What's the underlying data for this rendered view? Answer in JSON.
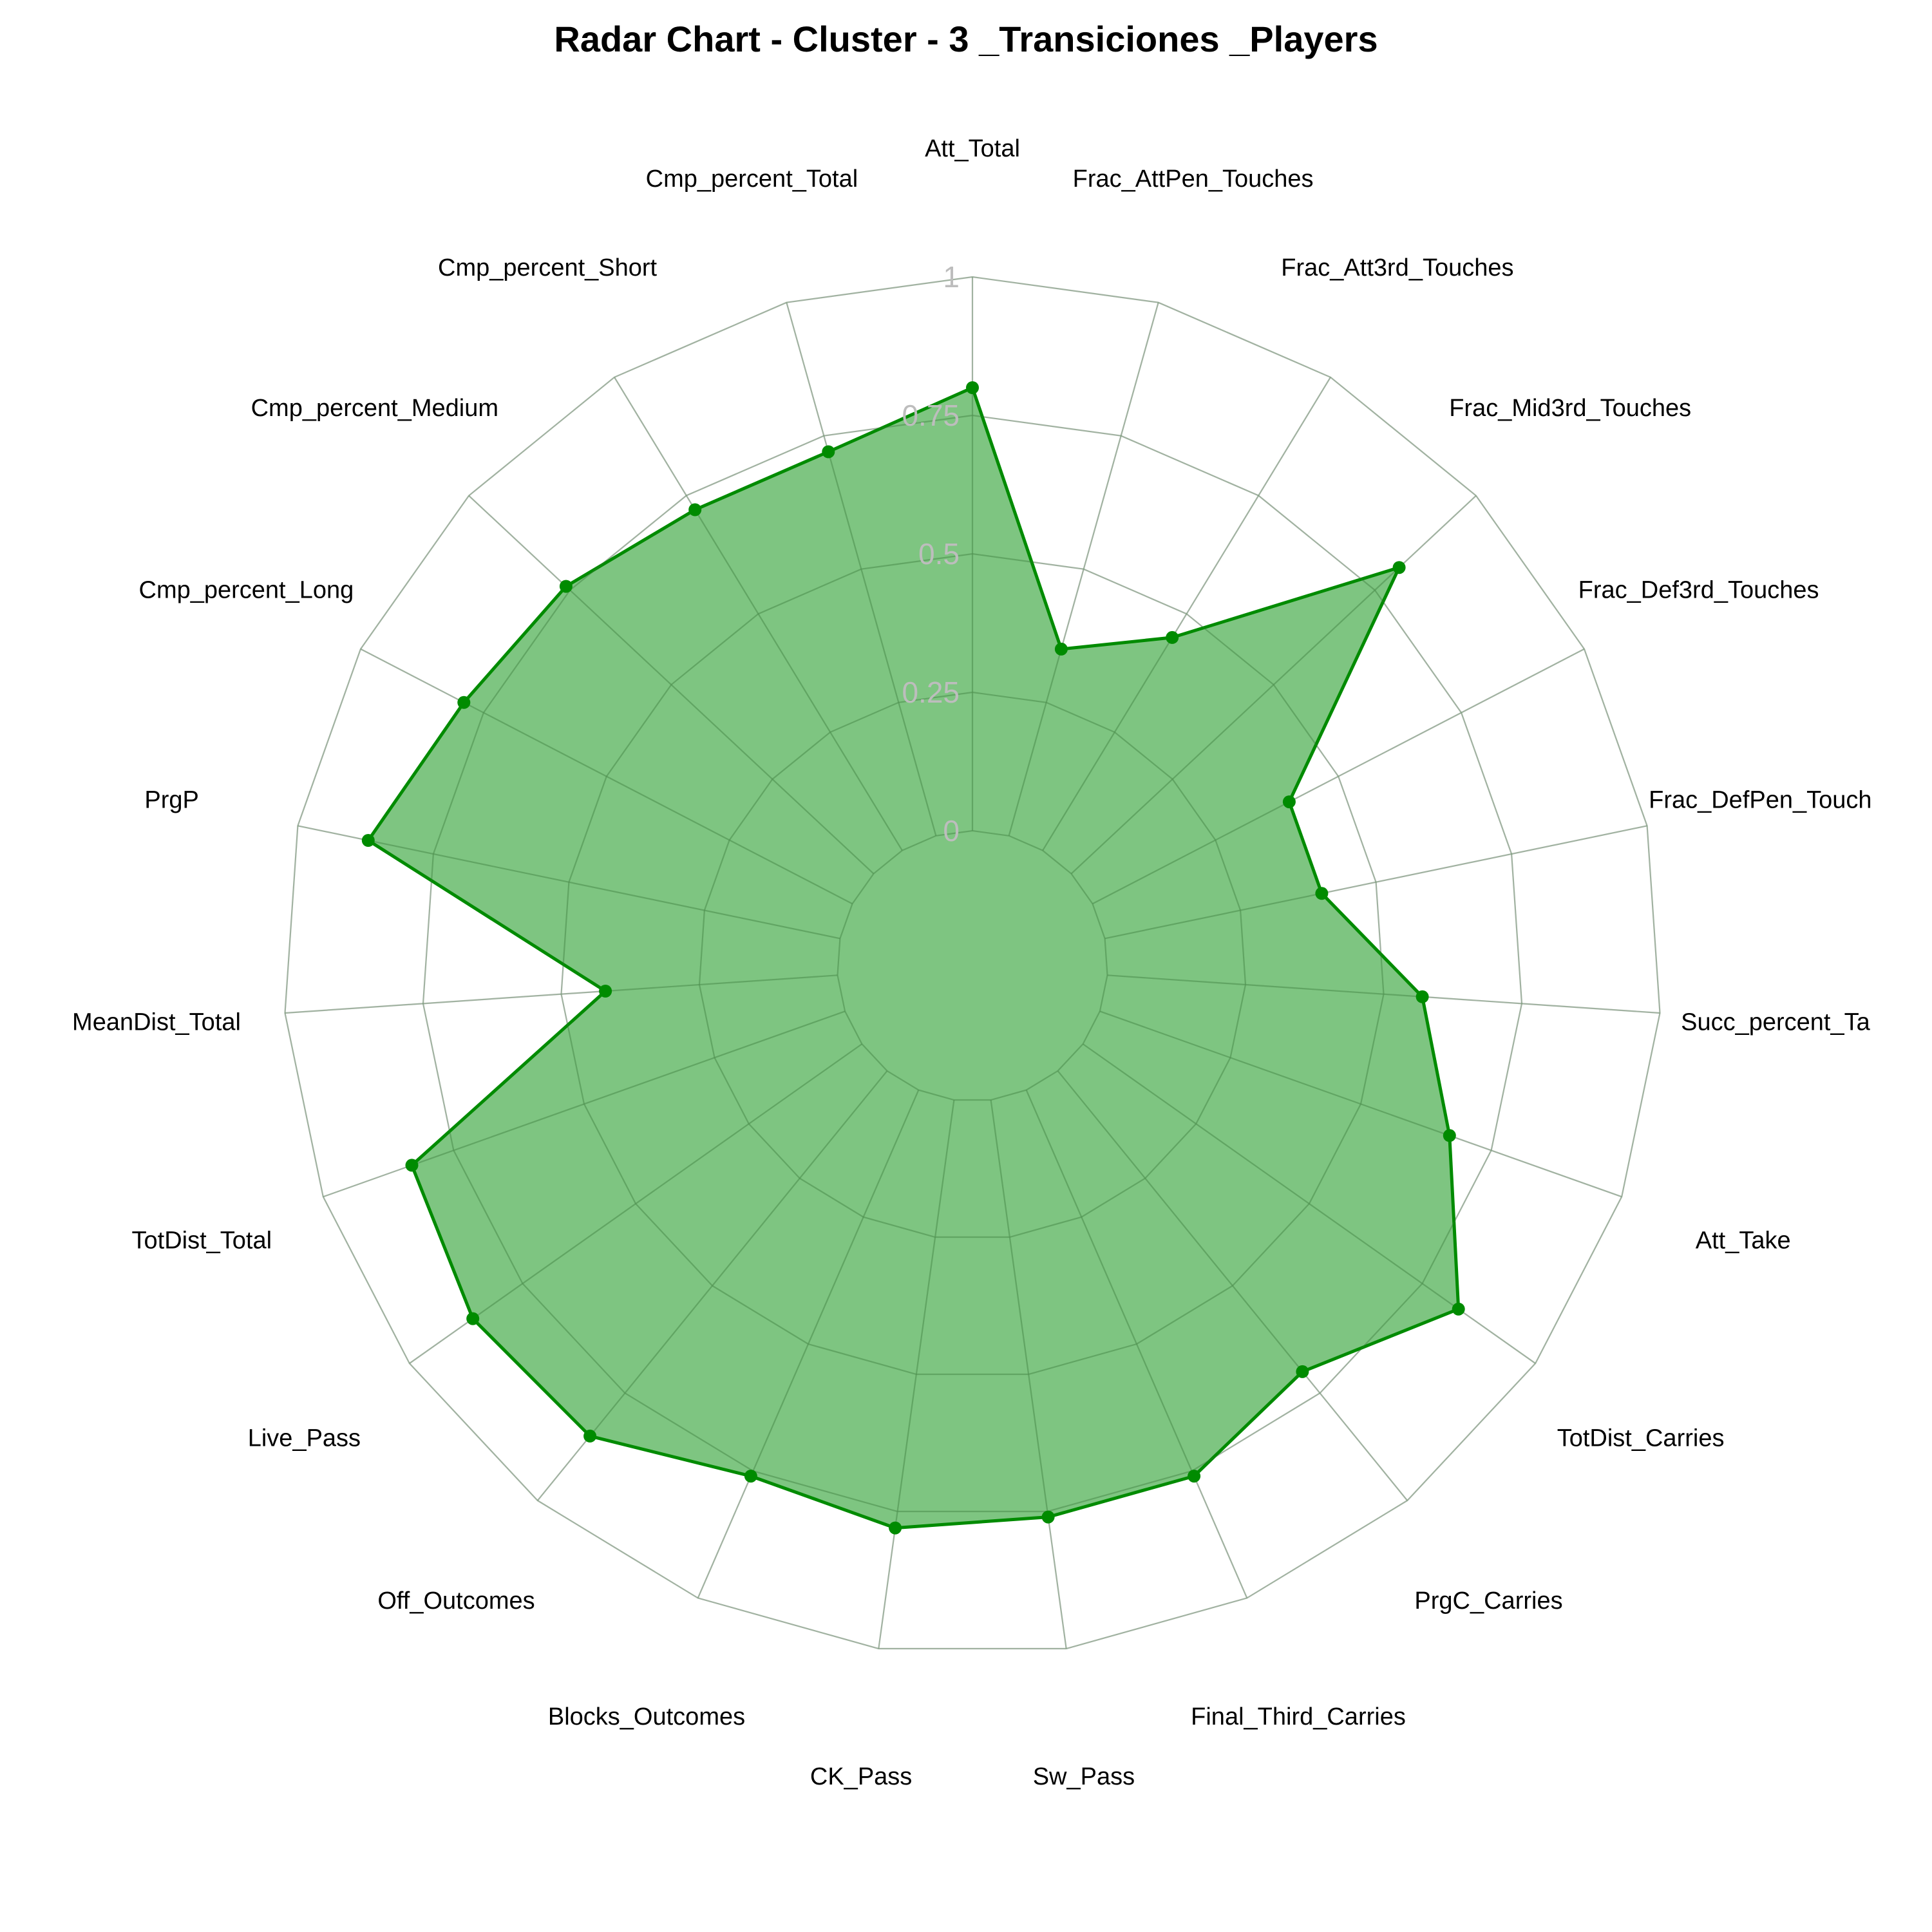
{
  "chart_data": {
    "type": "radar",
    "title": "Radar Chart - Cluster - 3 _Transiciones _Players",
    "categories": [
      "Att_Total",
      "Frac_AttPen_Touches",
      "Frac_Att3rd_Touches",
      "Frac_Mid3rd_Touches",
      "Frac_Def3rd_Touches",
      "Frac_DefPen_Touches",
      "Succ_percent_Take",
      "Att_Take",
      "TotDist_Carries",
      "PrgC_Carries",
      "Final_Third_Carries",
      "Sw_Pass",
      "CK_Pass",
      "Blocks_Outcomes",
      "Off_Outcomes",
      "Live_Pass",
      "TotDist_Total",
      "MeanDist_Total",
      "PrgP",
      "Cmp_percent_Long",
      "Cmp_percent_Medium",
      "Cmp_percent_Short",
      "Cmp_percent_Total"
    ],
    "values": [
      0.8,
      0.35,
      0.45,
      0.81,
      0.4,
      0.4,
      0.57,
      0.67,
      0.83,
      0.7,
      0.76,
      0.76,
      0.78,
      0.76,
      0.85,
      0.86,
      0.83,
      0.42,
      0.87,
      0.79,
      0.76,
      0.72,
      0.72
    ],
    "rlim": [
      0,
      1
    ],
    "r_ticks": [
      0,
      0.25,
      0.5,
      0.75,
      1
    ],
    "r_tick_labels": [
      "0",
      "0.25",
      "0.5",
      "0.75",
      "1"
    ],
    "grid": true,
    "legend": "none",
    "series_color": "#008b00",
    "fill_color": "#4caf50"
  }
}
